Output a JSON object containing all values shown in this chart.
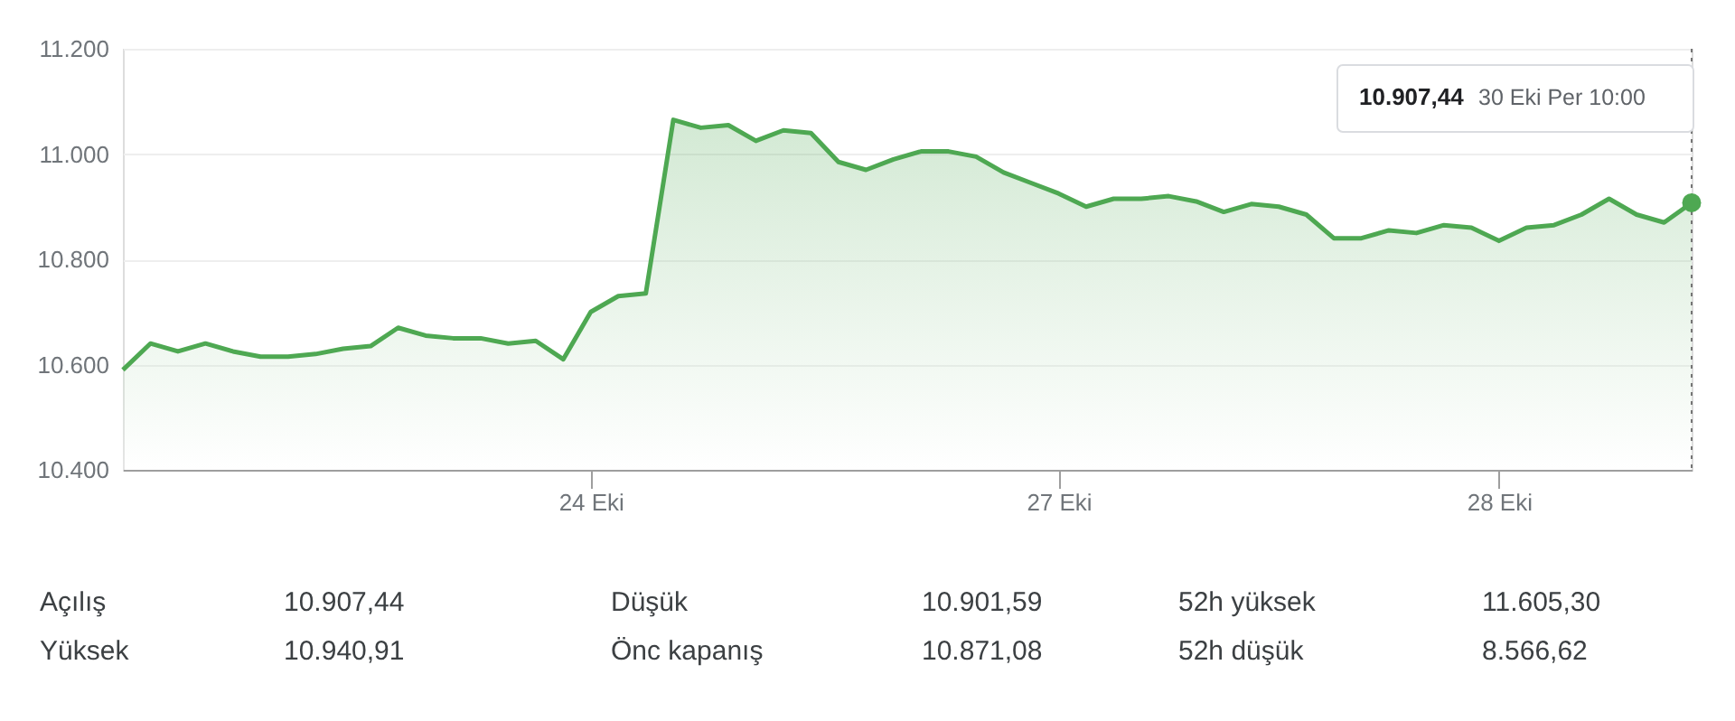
{
  "chart_data": {
    "type": "area",
    "categories": [
      null,
      null,
      null,
      null,
      null,
      null,
      null,
      null,
      null,
      null,
      null,
      null,
      null,
      null,
      null,
      null,
      null,
      "24 Eki",
      null,
      null,
      null,
      null,
      null,
      null,
      null,
      null,
      null,
      null,
      null,
      null,
      null,
      null,
      null,
      null,
      "27 Eki",
      null,
      null,
      null,
      null,
      null,
      null,
      null,
      null,
      null,
      null,
      null,
      null,
      null,
      null,
      null,
      "28 Eki",
      null,
      null,
      null,
      null,
      null,
      null,
      null
    ],
    "series": [
      {
        "color": "#4ea852",
        "values": [
          10590,
          10640,
          10625,
          10640,
          10625,
          10615,
          10615,
          10620,
          10630,
          10635,
          10670,
          10655,
          10650,
          10650,
          10640,
          10645,
          10610,
          10700,
          10730,
          10735,
          11065,
          11050,
          11055,
          11025,
          11045,
          11040,
          10985,
          10970,
          10990,
          11005,
          11005,
          10995,
          10965,
          10945,
          10925,
          10900,
          10915,
          10915,
          10920,
          10910,
          10890,
          10905,
          10900,
          10885,
          10840,
          10840,
          10855,
          10850,
          10865,
          10860,
          10835,
          10860,
          10865,
          10885,
          10915,
          10885,
          10870,
          10907.44
        ]
      }
    ],
    "ylim": [
      10400,
      11200
    ],
    "yticks": [
      {
        "value": 10400,
        "label": "10.400"
      },
      {
        "value": 10600,
        "label": "10.600"
      },
      {
        "value": 10800,
        "label": "10.800"
      },
      {
        "value": 11000,
        "label": "11.000"
      },
      {
        "value": 11200,
        "label": "11.200"
      }
    ],
    "grid": "y",
    "annotations": [
      "10.907,44",
      "30 Eki Per 10:00",
      "Açılış",
      "10.907,44",
      "Düşük",
      "10.901,59",
      "52h yüksek",
      "11.605,30",
      "Yüksek",
      "10.940,91",
      "Önc kapanış",
      "10.871,08",
      "52h düşük",
      "8.566,62"
    ]
  }
}
